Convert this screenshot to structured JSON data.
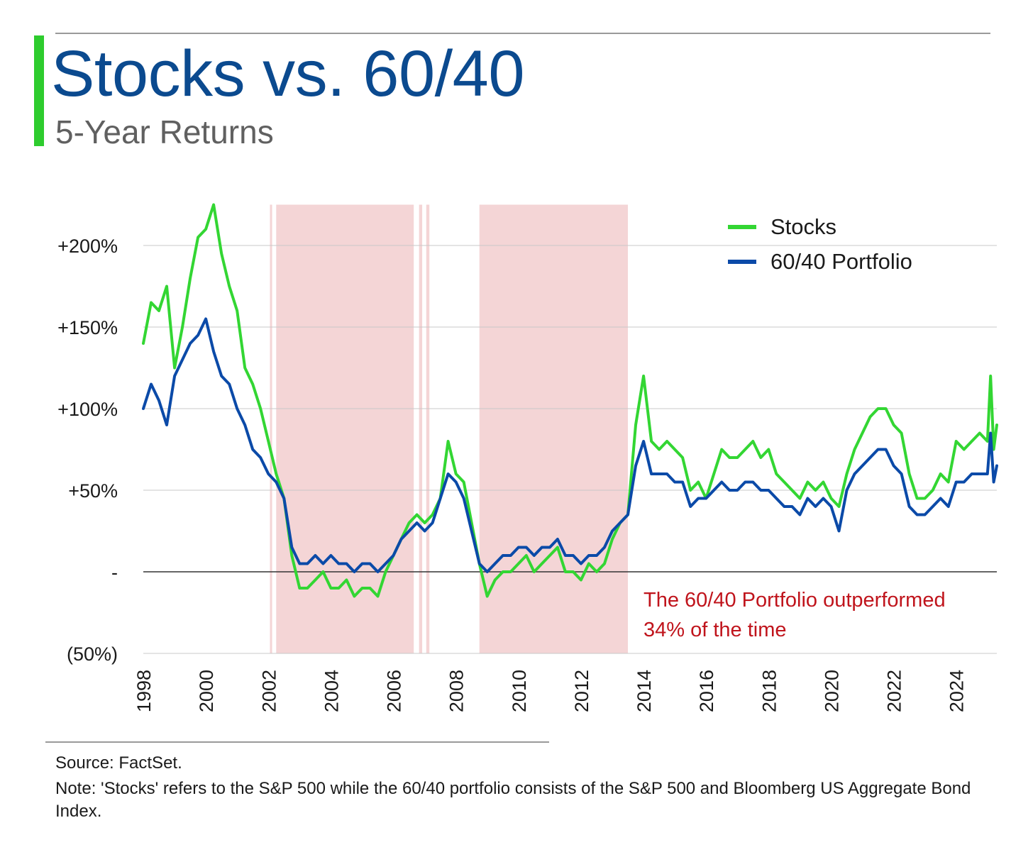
{
  "header": {
    "title": "Stocks vs. 60/40",
    "subtitle": "5-Year Returns"
  },
  "footer": {
    "source": "Source: FactSet.",
    "note": "Note: 'Stocks' refers to the S&P 500 while the 60/40 portfolio consists of the S&P 500 and Bloomberg US Aggregate Bond Index."
  },
  "colors": {
    "stocks": "#33d633",
    "portfolio": "#0b4aa8",
    "shading": "#f4d5d6",
    "annotation": "#c0141c",
    "title": "#0b4a8f",
    "accent": "#2ecc2e"
  },
  "chart_data": {
    "type": "line",
    "title": "Stocks vs. 60/40",
    "subtitle": "5-Year Returns",
    "xlabel": "",
    "ylabel": "",
    "xlim": [
      1998,
      2025.3
    ],
    "ylim": [
      -50,
      225
    ],
    "x_ticks": [
      1998,
      2000,
      2002,
      2004,
      2006,
      2008,
      2010,
      2012,
      2014,
      2016,
      2018,
      2020,
      2022,
      2024
    ],
    "x_tick_labels": [
      "1998",
      "2000",
      "2002",
      "2004",
      "2006",
      "2008",
      "2010",
      "2012",
      "2014",
      "2016",
      "2018",
      "2020",
      "2022",
      "2024"
    ],
    "y_ticks": [
      200,
      150,
      100,
      50,
      0,
      -50
    ],
    "y_tick_labels": [
      "+200%",
      "+150%",
      "+100%",
      "+50%",
      "-",
      "(50%)"
    ],
    "grid": true,
    "legend_position": "top-right",
    "legend": [
      "Stocks",
      "60/40 Portfolio"
    ],
    "annotation": {
      "line1": "The 60/40 Portfolio outperformed",
      "line2": "34% of the time"
    },
    "shaded_periods": [
      [
        2002.05,
        2002.12
      ],
      [
        2002.25,
        2006.65
      ],
      [
        2006.82,
        2006.92
      ],
      [
        2007.05,
        2007.15
      ],
      [
        2008.75,
        2013.5
      ]
    ],
    "x": [
      1998.0,
      1998.25,
      1998.5,
      1998.75,
      1999.0,
      1999.25,
      1999.5,
      1999.75,
      2000.0,
      2000.25,
      2000.5,
      2000.75,
      2001.0,
      2001.25,
      2001.5,
      2001.75,
      2002.0,
      2002.25,
      2002.5,
      2002.75,
      2003.0,
      2003.25,
      2003.5,
      2003.75,
      2004.0,
      2004.25,
      2004.5,
      2004.75,
      2005.0,
      2005.25,
      2005.5,
      2005.75,
      2006.0,
      2006.25,
      2006.5,
      2006.75,
      2007.0,
      2007.25,
      2007.5,
      2007.75,
      2008.0,
      2008.25,
      2008.5,
      2008.75,
      2009.0,
      2009.25,
      2009.5,
      2009.75,
      2010.0,
      2010.25,
      2010.5,
      2010.75,
      2011.0,
      2011.25,
      2011.5,
      2011.75,
      2012.0,
      2012.25,
      2012.5,
      2012.75,
      2013.0,
      2013.25,
      2013.5,
      2013.75,
      2014.0,
      2014.25,
      2014.5,
      2014.75,
      2015.0,
      2015.25,
      2015.5,
      2015.75,
      2016.0,
      2016.25,
      2016.5,
      2016.75,
      2017.0,
      2017.25,
      2017.5,
      2017.75,
      2018.0,
      2018.25,
      2018.5,
      2018.75,
      2019.0,
      2019.25,
      2019.5,
      2019.75,
      2020.0,
      2020.25,
      2020.5,
      2020.75,
      2021.0,
      2021.25,
      2021.5,
      2021.75,
      2022.0,
      2022.25,
      2022.5,
      2022.75,
      2023.0,
      2023.25,
      2023.5,
      2023.75,
      2024.0,
      2024.25,
      2024.5,
      2024.75,
      2025.0,
      2025.1,
      2025.2,
      2025.3
    ],
    "series": [
      {
        "name": "Stocks",
        "values": [
          140,
          165,
          160,
          175,
          125,
          150,
          180,
          205,
          210,
          225,
          195,
          175,
          160,
          125,
          115,
          100,
          80,
          60,
          45,
          10,
          -10,
          -10,
          -5,
          0,
          -10,
          -10,
          -5,
          -15,
          -10,
          -10,
          -15,
          0,
          10,
          20,
          30,
          35,
          30,
          35,
          45,
          80,
          60,
          55,
          30,
          5,
          -15,
          -5,
          0,
          0,
          5,
          10,
          0,
          5,
          10,
          15,
          0,
          0,
          -5,
          5,
          0,
          5,
          20,
          30,
          35,
          90,
          120,
          80,
          75,
          80,
          75,
          70,
          50,
          55,
          45,
          60,
          75,
          70,
          70,
          75,
          80,
          70,
          75,
          60,
          55,
          50,
          45,
          55,
          50,
          55,
          45,
          40,
          60,
          75,
          85,
          95,
          100,
          100,
          90,
          85,
          60,
          45,
          45,
          50,
          60,
          55,
          80,
          75,
          80,
          85,
          80,
          120,
          75,
          90
        ]
      },
      {
        "name": "60/40 Portfolio",
        "values": [
          100,
          115,
          105,
          90,
          120,
          130,
          140,
          145,
          155,
          135,
          120,
          115,
          100,
          90,
          75,
          70,
          60,
          55,
          45,
          15,
          5,
          5,
          10,
          5,
          10,
          5,
          5,
          0,
          5,
          5,
          0,
          5,
          10,
          20,
          25,
          30,
          25,
          30,
          45,
          60,
          55,
          45,
          25,
          5,
          0,
          5,
          10,
          10,
          15,
          15,
          10,
          15,
          15,
          20,
          10,
          10,
          5,
          10,
          10,
          15,
          25,
          30,
          35,
          65,
          80,
          60,
          60,
          60,
          55,
          55,
          40,
          45,
          45,
          50,
          55,
          50,
          50,
          55,
          55,
          50,
          50,
          45,
          40,
          40,
          35,
          45,
          40,
          45,
          40,
          25,
          50,
          60,
          65,
          70,
          75,
          75,
          65,
          60,
          40,
          35,
          35,
          40,
          45,
          40,
          55,
          55,
          60,
          60,
          60,
          85,
          55,
          65
        ]
      }
    ]
  }
}
